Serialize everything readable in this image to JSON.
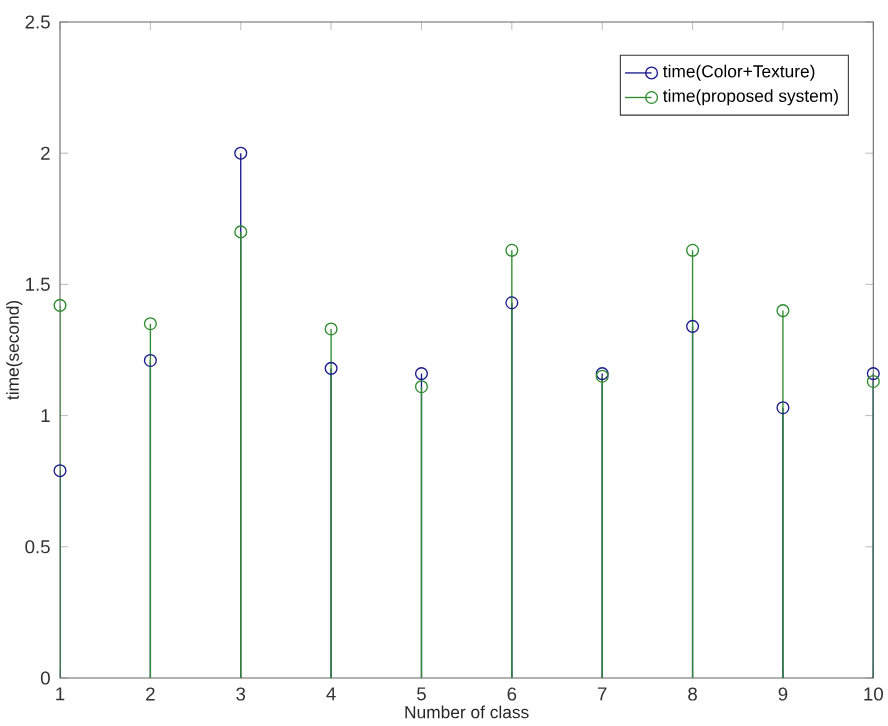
{
  "chart_data": {
    "type": "lollipop",
    "xlabel": "Number of class",
    "ylabel": "time(second)",
    "x": [
      1,
      2,
      3,
      4,
      5,
      6,
      7,
      8,
      9,
      10
    ],
    "series": [
      {
        "name": "time(Color+Texture)",
        "color": "#1a1a8c",
        "values": [
          0.79,
          1.21,
          2.0,
          1.18,
          1.16,
          1.43,
          1.16,
          1.34,
          1.03,
          1.16
        ]
      },
      {
        "name": "time(proposed system)",
        "color": "#2e8b2e",
        "values": [
          1.42,
          1.35,
          1.7,
          1.33,
          1.11,
          1.63,
          1.15,
          1.63,
          1.4,
          1.13
        ]
      }
    ],
    "xlim": [
      1,
      10
    ],
    "xticks": [
      1,
      2,
      3,
      4,
      5,
      6,
      7,
      8,
      9,
      10
    ],
    "ylim": [
      0,
      2.5
    ],
    "yticks": [
      0,
      0.5,
      1,
      1.5,
      2,
      2.5
    ],
    "marker": "circle",
    "line_style": "solid",
    "legend": "top right",
    "grid": false
  }
}
